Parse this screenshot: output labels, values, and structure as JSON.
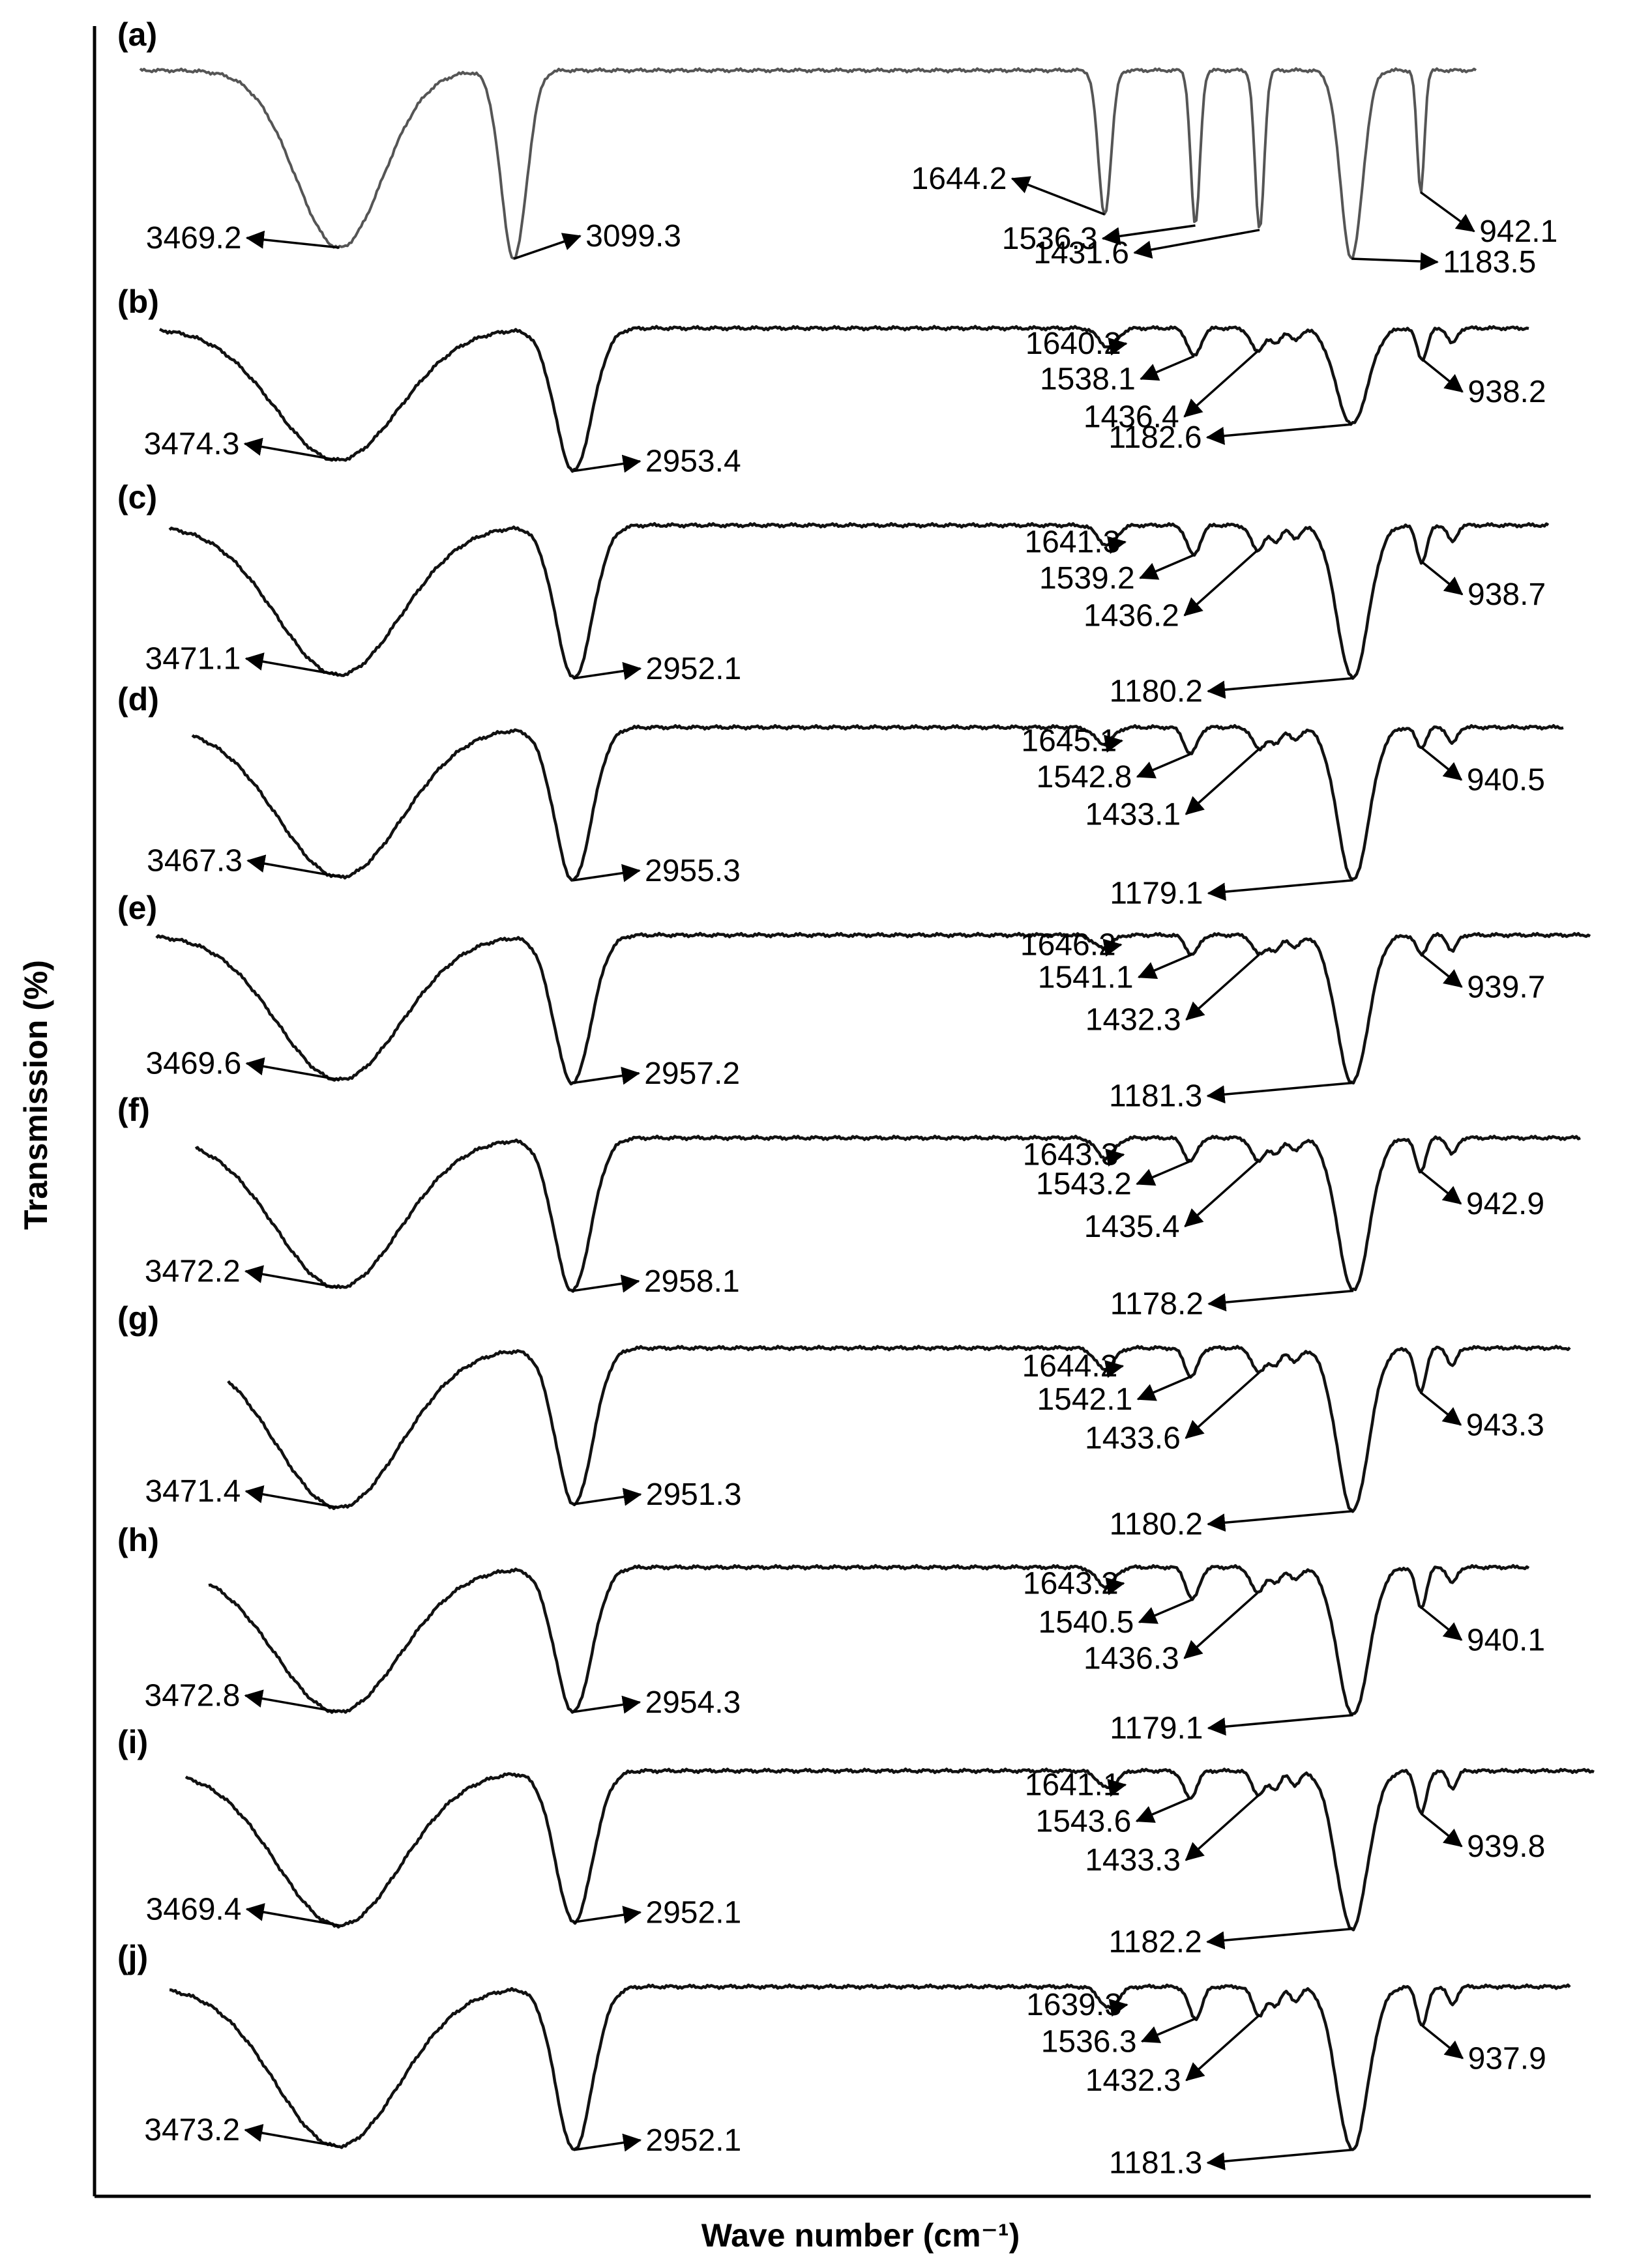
{
  "chart_data": {
    "type": "line",
    "title": "",
    "xlabel": "Wave number (cm⁻¹)",
    "ylabel": "Transmission (%)",
    "x_direction": "decreasing",
    "xlim": [
      4000,
      600
    ],
    "grid": false,
    "series": [
      {
        "label": "(a)",
        "peaks": [
          {
            "label": "3469.2",
            "x": 3469.2,
            "y": 0.8
          },
          {
            "label": "3099.3",
            "x": 3099.3,
            "y": 0.85
          },
          {
            "label": "1644.2",
            "x": 1644.2,
            "y": 0.65
          },
          {
            "label": "1536.3",
            "x": 1536.3,
            "y": 0.7
          },
          {
            "label": "1431.6",
            "x": 1431.6,
            "y": 0.72
          },
          {
            "label": "1183.5",
            "x": 1183.5,
            "y": 0.85
          },
          {
            "label": "942.1",
            "x": 942.1,
            "y": 0.55
          }
        ]
      },
      {
        "label": "(b)",
        "peaks": [
          {
            "label": "3474.3",
            "x": 3474.3,
            "y": 0.85
          },
          {
            "label": "2953.4",
            "x": 2953.4,
            "y": 0.92
          },
          {
            "label": "1640.2",
            "x": 1640.2,
            "y": 0.12
          },
          {
            "label": "1538.1",
            "x": 1538.1,
            "y": 0.18
          },
          {
            "label": "1436.4",
            "x": 1436.4,
            "y": 0.15
          },
          {
            "label": "1182.6",
            "x": 1182.6,
            "y": 0.62
          },
          {
            "label": "938.2",
            "x": 938.2,
            "y": 0.2
          }
        ]
      },
      {
        "label": "(c)",
        "peaks": [
          {
            "label": "3471.1",
            "x": 3471.1,
            "y": 0.9
          },
          {
            "label": "2952.1",
            "x": 2952.1,
            "y": 0.92
          },
          {
            "label": "1641.3",
            "x": 1641.3,
            "y": 0.12
          },
          {
            "label": "1539.2",
            "x": 1539.2,
            "y": 0.18
          },
          {
            "label": "1436.2",
            "x": 1436.2,
            "y": 0.15
          },
          {
            "label": "1180.2",
            "x": 1180.2,
            "y": 0.92
          },
          {
            "label": "938.7",
            "x": 938.7,
            "y": 0.22
          }
        ]
      },
      {
        "label": "(d)",
        "peaks": [
          {
            "label": "3467.3",
            "x": 3467.3,
            "y": 0.9
          },
          {
            "label": "2955.3",
            "x": 2955.3,
            "y": 0.92
          },
          {
            "label": "1645.1",
            "x": 1645.1,
            "y": 0.1
          },
          {
            "label": "1542.8",
            "x": 1542.8,
            "y": 0.16
          },
          {
            "label": "1433.1",
            "x": 1433.1,
            "y": 0.13
          },
          {
            "label": "1179.1",
            "x": 1179.1,
            "y": 0.92
          },
          {
            "label": "940.5",
            "x": 940.5,
            "y": 0.12
          }
        ]
      },
      {
        "label": "(e)",
        "peaks": [
          {
            "label": "3469.6",
            "x": 3469.6,
            "y": 0.9
          },
          {
            "label": "2957.2",
            "x": 2957.2,
            "y": 0.92
          },
          {
            "label": "1646.2",
            "x": 1646.2,
            "y": 0.08
          },
          {
            "label": "1541.1",
            "x": 1541.1,
            "y": 0.12
          },
          {
            "label": "1432.3",
            "x": 1432.3,
            "y": 0.12
          },
          {
            "label": "1181.3",
            "x": 1181.3,
            "y": 0.92
          },
          {
            "label": "939.7",
            "x": 939.7,
            "y": 0.12
          }
        ]
      },
      {
        "label": "(f)",
        "peaks": [
          {
            "label": "3472.2",
            "x": 3472.2,
            "y": 0.9
          },
          {
            "label": "2958.1",
            "x": 2958.1,
            "y": 0.92
          },
          {
            "label": "1643.3",
            "x": 1643.3,
            "y": 0.12
          },
          {
            "label": "1543.2",
            "x": 1543.2,
            "y": 0.14
          },
          {
            "label": "1435.4",
            "x": 1435.4,
            "y": 0.14
          },
          {
            "label": "1178.2",
            "x": 1178.2,
            "y": 0.92
          },
          {
            "label": "942.9",
            "x": 942.9,
            "y": 0.2
          }
        ]
      },
      {
        "label": "(g)",
        "peaks": [
          {
            "label": "3471.4",
            "x": 3471.4,
            "y": 0.9
          },
          {
            "label": "2951.3",
            "x": 2951.3,
            "y": 0.88
          },
          {
            "label": "1644.2",
            "x": 1644.2,
            "y": 0.12
          },
          {
            "label": "1542.1",
            "x": 1542.1,
            "y": 0.16
          },
          {
            "label": "1433.6",
            "x": 1433.6,
            "y": 0.14
          },
          {
            "label": "1180.2",
            "x": 1180.2,
            "y": 0.92
          },
          {
            "label": "943.3",
            "x": 943.3,
            "y": 0.25
          }
        ]
      },
      {
        "label": "(h)",
        "peaks": [
          {
            "label": "3472.8",
            "x": 3472.8,
            "y": 0.9
          },
          {
            "label": "2954.3",
            "x": 2954.3,
            "y": 0.9
          },
          {
            "label": "1643.2",
            "x": 1643.2,
            "y": 0.12
          },
          {
            "label": "1540.5",
            "x": 1540.5,
            "y": 0.2
          },
          {
            "label": "1436.3",
            "x": 1436.3,
            "y": 0.16
          },
          {
            "label": "1179.1",
            "x": 1179.1,
            "y": 0.92
          },
          {
            "label": "940.1",
            "x": 940.1,
            "y": 0.25
          }
        ]
      },
      {
        "label": "(i)",
        "peaks": [
          {
            "label": "3469.4",
            "x": 3469.4,
            "y": 0.9
          },
          {
            "label": "2952.1",
            "x": 2952.1,
            "y": 0.88
          },
          {
            "label": "1641.1",
            "x": 1641.1,
            "y": 0.1
          },
          {
            "label": "1543.6",
            "x": 1543.6,
            "y": 0.16
          },
          {
            "label": "1433.3",
            "x": 1433.3,
            "y": 0.14
          },
          {
            "label": "1182.2",
            "x": 1182.2,
            "y": 0.92
          },
          {
            "label": "939.8",
            "x": 939.8,
            "y": 0.25
          }
        ]
      },
      {
        "label": "(j)",
        "peaks": [
          {
            "label": "3473.2",
            "x": 3473.2,
            "y": 0.9
          },
          {
            "label": "2952.1",
            "x": 2952.1,
            "y": 0.92
          },
          {
            "label": "1639.3",
            "x": 1639.3,
            "y": 0.12
          },
          {
            "label": "1536.3",
            "x": 1536.3,
            "y": 0.18
          },
          {
            "label": "1432.3",
            "x": 1432.3,
            "y": 0.16
          },
          {
            "label": "1181.3",
            "x": 1181.3,
            "y": 0.92
          },
          {
            "label": "937.9",
            "x": 937.9,
            "y": 0.22
          }
        ]
      }
    ]
  }
}
